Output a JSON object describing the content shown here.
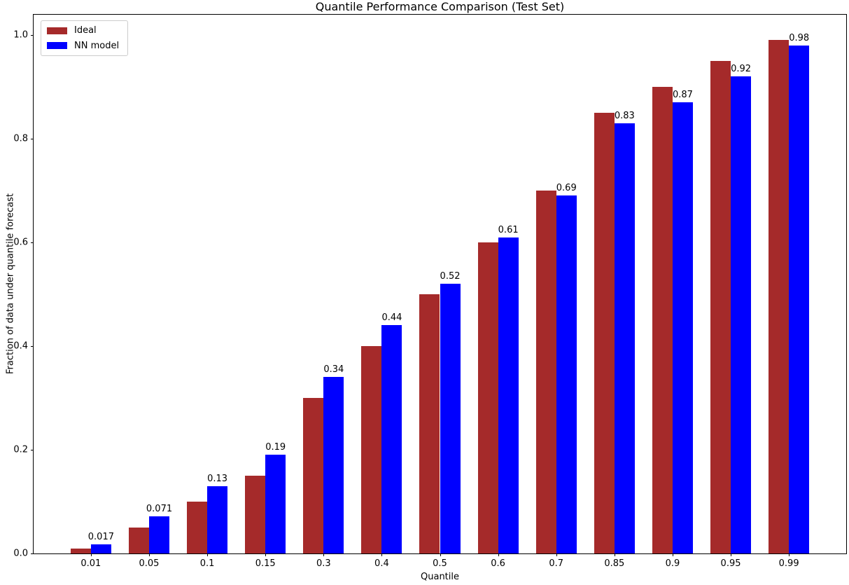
{
  "chart_data": {
    "type": "bar",
    "title": "Quantile Performance Comparison (Test Set)",
    "xlabel": "Quantile",
    "ylabel": "Fraction of data under quantile forecast",
    "categories": [
      "0.01",
      "0.05",
      "0.1",
      "0.15",
      "0.3",
      "0.4",
      "0.5",
      "0.6",
      "0.7",
      "0.85",
      "0.9",
      "0.95",
      "0.99"
    ],
    "series": [
      {
        "name": "Ideal",
        "color": "#A52A2A",
        "values": [
          0.01,
          0.05,
          0.1,
          0.15,
          0.3,
          0.4,
          0.5,
          0.6,
          0.7,
          0.85,
          0.9,
          0.95,
          0.99
        ]
      },
      {
        "name": "NN model",
        "color": "#0000FF",
        "values": [
          0.017,
          0.071,
          0.13,
          0.19,
          0.34,
          0.44,
          0.52,
          0.61,
          0.69,
          0.83,
          0.87,
          0.92,
          0.98
        ],
        "bar_labels": [
          "0.017",
          "0.071",
          "0.13",
          "0.19",
          "0.34",
          "0.44",
          "0.52",
          "0.61",
          "0.69",
          "0.83",
          "0.87",
          "0.92",
          "0.98"
        ]
      }
    ],
    "yticks": [
      "0.0",
      "0.2",
      "0.4",
      "0.6",
      "0.8",
      "1.0"
    ],
    "ylim": [
      0,
      1.039
    ],
    "grid": false,
    "legend_position": "upper left"
  }
}
